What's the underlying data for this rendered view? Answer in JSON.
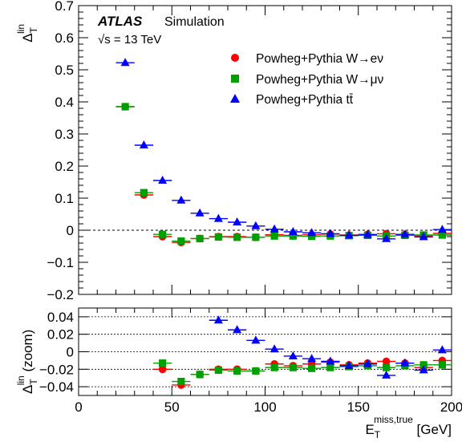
{
  "chart_data": [
    {
      "type": "scatter",
      "title": "",
      "ylabel_main": "Δ",
      "ylabel_sub": "T",
      "ylabel_sup": "lin",
      "xlim": [
        0,
        200
      ],
      "ylim": [
        -0.2,
        0.7
      ],
      "y_ticks": [
        -0.2,
        -0.1,
        0,
        0.1,
        0.2,
        0.3,
        0.4,
        0.5,
        0.6,
        0.7
      ],
      "y_tick_labels": [
        "−0.2",
        "−0.1",
        "0",
        "0.1",
        "0.2",
        "0.3",
        "0.4",
        "0.5",
        "0.6",
        "0.7"
      ],
      "reference_line": 0,
      "annotations": {
        "atlas": "ATLAS",
        "simulation": "Simulation",
        "energy": "√s = 13 TeV"
      },
      "legend": [
        "Powheg+Pythia W→eν",
        "Powheg+Pythia W→μν",
        "Powheg+Pythia tt̄"
      ],
      "legend_position": "top-right",
      "series": [
        {
          "name": "Powheg+Pythia W→eν",
          "marker": "circle",
          "color": "#ff0000",
          "x": [
            25,
            35,
            45,
            55,
            65,
            75,
            85,
            95,
            105,
            115,
            125,
            135,
            145,
            155,
            165,
            175,
            185,
            195
          ],
          "y": [
            0.385,
            0.11,
            -0.02,
            -0.038,
            -0.026,
            -0.02,
            -0.02,
            -0.022,
            -0.014,
            -0.016,
            -0.014,
            -0.012,
            -0.015,
            -0.013,
            -0.011,
            -0.013,
            -0.018,
            -0.01
          ]
        },
        {
          "name": "Powheg+Pythia W→μν",
          "marker": "square",
          "color": "#00a000",
          "x": [
            25,
            35,
            45,
            55,
            65,
            75,
            85,
            95,
            105,
            115,
            125,
            135,
            145,
            155,
            165,
            175,
            185,
            195
          ],
          "y": [
            0.385,
            0.117,
            -0.013,
            -0.034,
            -0.026,
            -0.021,
            -0.022,
            -0.022,
            -0.018,
            -0.018,
            -0.019,
            -0.018,
            -0.017,
            -0.016,
            -0.018,
            -0.016,
            -0.015,
            -0.015
          ]
        },
        {
          "name": "Powheg+Pythia tt̄",
          "marker": "triangle",
          "color": "#0000ff",
          "x": [
            25,
            35,
            45,
            55,
            65,
            75,
            85,
            95,
            105,
            115,
            125,
            135,
            145,
            155,
            165,
            175,
            185,
            195
          ],
          "y": [
            0.522,
            0.265,
            0.155,
            0.093,
            0.053,
            0.036,
            0.025,
            0.013,
            0.003,
            -0.005,
            -0.008,
            -0.011,
            -0.016,
            -0.014,
            -0.027,
            -0.013,
            -0.021,
            0.002
          ]
        }
      ]
    },
    {
      "type": "scatter",
      "title": "",
      "ylabel_main": "Δ",
      "ylabel_sub": "T",
      "ylabel_sup": "lin",
      "ylabel_suffix": " (zoom)",
      "xlabel_main": "E",
      "xlabel_sub": "T",
      "xlabel_sup": "miss,true",
      "xlabel_unit": " [GeV]",
      "xlim": [
        0,
        200
      ],
      "ylim": [
        -0.05,
        0.05
      ],
      "x_ticks": [
        0,
        50,
        100,
        150,
        200
      ],
      "x_tick_labels": [
        "0",
        "50",
        "100",
        "150",
        "200"
      ],
      "y_ticks": [
        -0.04,
        -0.02,
        0,
        0.02,
        0.04
      ],
      "y_tick_labels": [
        "−0.04",
        "−0.02",
        "0",
        "0.02",
        "0.04"
      ],
      "grid_lines": [
        -0.04,
        -0.02,
        0,
        0.02,
        0.04
      ]
    }
  ]
}
